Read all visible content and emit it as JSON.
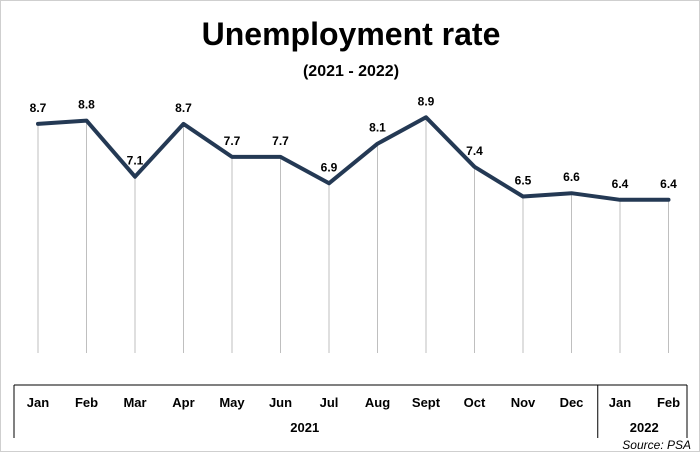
{
  "chart_data": {
    "type": "line",
    "title": "Unemployment rate",
    "subtitle": "(2021  - 2022)",
    "categories": [
      "Jan",
      "Feb",
      "Mar",
      "Apr",
      "May",
      "Jun",
      "Jul",
      "Aug",
      "Sept",
      "Oct",
      "Nov",
      "Dec",
      "Jan",
      "Feb"
    ],
    "values": [
      8.7,
      8.8,
      7.1,
      8.7,
      7.7,
      7.7,
      6.9,
      8.1,
      8.9,
      7.4,
      6.5,
      6.6,
      6.4,
      6.4
    ],
    "data_labels": [
      "8.7",
      "8.8",
      "7.1",
      "8.7",
      "7.7",
      "7.7",
      "6.9",
      "8.1",
      "8.9",
      "7.4",
      "6.5",
      "6.6",
      "6.4",
      "6.4"
    ],
    "groups": [
      {
        "label": "2021",
        "start": 0,
        "end": 11
      },
      {
        "label": "2022",
        "start": 12,
        "end": 13
      }
    ],
    "source": "Source: PSA",
    "line_color": "#243954",
    "grid": false,
    "legend": "none"
  }
}
